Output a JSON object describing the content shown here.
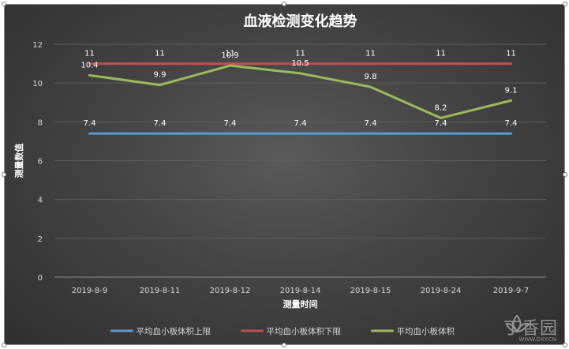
{
  "chart_data": {
    "type": "line",
    "title": "血液检测变化趋势",
    "xlabel": "测量时间",
    "ylabel": "测量数值",
    "ylim": [
      0,
      12
    ],
    "yticks": [
      0,
      2,
      4,
      6,
      8,
      10,
      12
    ],
    "grid": true,
    "legend_position": "bottom",
    "categories": [
      "2019-8-9",
      "2019-8-11",
      "2019-8-12",
      "2019-8-14",
      "2019-8-15",
      "2019-8-24",
      "2019-9-7"
    ],
    "series": [
      {
        "name": "平均血小板体积上限",
        "color": "#5b9bd5",
        "values": [
          7.4,
          7.4,
          7.4,
          7.4,
          7.4,
          7.4,
          7.4
        ]
      },
      {
        "name": "平均血小板体积下限",
        "color": "#c0504d",
        "values": [
          11,
          11,
          11,
          11,
          11,
          11,
          11
        ]
      },
      {
        "name": "平均血小板体积",
        "color": "#9bbb59",
        "values": [
          10.4,
          9.9,
          10.9,
          10.5,
          9.8,
          8.2,
          9.1
        ]
      }
    ]
  },
  "watermark": {
    "text": "丁香园",
    "url": "WWW.DXY.CN"
  }
}
